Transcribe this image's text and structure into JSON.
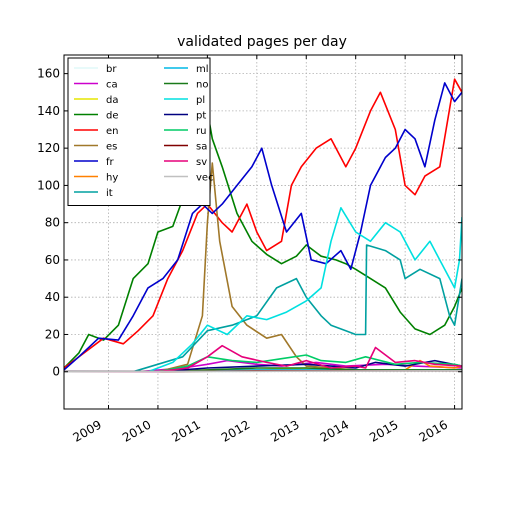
{
  "chart_data": {
    "type": "line",
    "title": "validated pages per day",
    "xlabel": "",
    "ylabel": "",
    "xlim": [
      2008.1,
      2016.15
    ],
    "ylim": [
      -20,
      170
    ],
    "x_ticks": [
      2009,
      2010,
      2011,
      2012,
      2013,
      2014,
      2015,
      2016
    ],
    "x_tick_labels": [
      "2009",
      "2010",
      "2011",
      "2012",
      "2013",
      "2014",
      "2015",
      "2016"
    ],
    "y_ticks": [
      0,
      20,
      40,
      60,
      80,
      100,
      120,
      140,
      160
    ],
    "y_tick_labels": [
      "0",
      "20",
      "40",
      "60",
      "80",
      "100",
      "120",
      "140",
      "160"
    ],
    "grid": true,
    "legend_position": "top-left",
    "legend_columns": 2,
    "series": [
      {
        "name": "br",
        "color": "#e0f8f8",
        "x": [
          2008.1,
          2016.15
        ],
        "y": [
          0,
          0.5
        ]
      },
      {
        "name": "ca",
        "color": "#cc00cc",
        "x": [
          2008.1,
          2009.6,
          2010.5,
          2011.0,
          2011.4,
          2012.0,
          2012.5,
          2013.2,
          2013.8,
          2014.6,
          2015.2,
          2016.15
        ],
        "y": [
          0,
          0,
          2,
          4,
          6,
          4,
          3,
          5,
          3,
          4,
          3,
          2
        ]
      },
      {
        "name": "da",
        "color": "#e6e600",
        "x": [
          2008.1,
          2010.0,
          2011.0,
          2012.0,
          2013.0,
          2014.0,
          2015.0,
          2016.15
        ],
        "y": [
          0,
          0,
          1,
          1,
          2,
          1,
          1,
          1
        ]
      },
      {
        "name": "de",
        "color": "#008000",
        "x": [
          2008.1,
          2008.4,
          2008.6,
          2008.9,
          2009.2,
          2009.5,
          2009.8,
          2010.0,
          2010.3,
          2010.6,
          2010.8,
          2011.0,
          2011.1,
          2011.3,
          2011.6,
          2011.9,
          2012.2,
          2012.5,
          2012.8,
          2013.0,
          2013.3,
          2013.6,
          2013.8,
          2014.0,
          2014.3,
          2014.6,
          2014.9,
          2015.2,
          2015.5,
          2015.8,
          2016.0,
          2016.15
        ],
        "y": [
          2,
          10,
          20,
          17,
          25,
          50,
          58,
          75,
          78,
          100,
          125,
          140,
          125,
          110,
          85,
          70,
          63,
          58,
          62,
          68,
          62,
          60,
          58,
          55,
          50,
          45,
          32,
          23,
          20,
          25,
          35,
          45
        ]
      },
      {
        "name": "en",
        "color": "#ff0000",
        "x": [
          2008.1,
          2008.5,
          2008.9,
          2009.3,
          2009.6,
          2009.9,
          2010.2,
          2010.5,
          2010.8,
          2011.0,
          2011.3,
          2011.5,
          2011.8,
          2012.0,
          2012.2,
          2012.5,
          2012.7,
          2012.9,
          2013.2,
          2013.5,
          2013.8,
          2014.0,
          2014.3,
          2014.5,
          2014.8,
          2015.0,
          2015.2,
          2015.4,
          2015.7,
          2016.0,
          2016.15
        ],
        "y": [
          2,
          10,
          18,
          15,
          22,
          30,
          50,
          65,
          85,
          90,
          80,
          75,
          90,
          75,
          65,
          70,
          100,
          110,
          120,
          125,
          110,
          120,
          140,
          150,
          130,
          100,
          95,
          105,
          110,
          157,
          150
        ]
      },
      {
        "name": "es",
        "color": "#a0782a",
        "x": [
          2008.1,
          2010.0,
          2010.6,
          2010.9,
          2011.0,
          2011.1,
          2011.25,
          2011.5,
          2011.8,
          2012.2,
          2012.5,
          2012.8,
          2013.0,
          2013.5,
          2014.0,
          2015.0,
          2016.15
        ],
        "y": [
          0,
          0,
          4,
          30,
          80,
          112,
          70,
          35,
          25,
          18,
          20,
          8,
          3,
          2,
          1,
          1,
          1
        ]
      },
      {
        "name": "fr",
        "color": "#0000cc",
        "x": [
          2008.1,
          2008.4,
          2008.8,
          2009.2,
          2009.5,
          2009.8,
          2010.1,
          2010.4,
          2010.7,
          2010.9,
          2011.1,
          2011.3,
          2011.6,
          2011.9,
          2012.1,
          2012.3,
          2012.6,
          2012.9,
          2013.1,
          2013.4,
          2013.7,
          2013.9,
          2014.1,
          2014.3,
          2014.6,
          2014.8,
          2015.0,
          2015.2,
          2015.4,
          2015.6,
          2015.8,
          2016.0,
          2016.15
        ],
        "y": [
          1,
          8,
          18,
          17,
          30,
          45,
          50,
          60,
          85,
          90,
          85,
          90,
          100,
          110,
          120,
          100,
          75,
          85,
          60,
          58,
          65,
          55,
          75,
          100,
          115,
          120,
          130,
          125,
          110,
          135,
          155,
          145,
          150
        ]
      },
      {
        "name": "hy",
        "color": "#ff8000",
        "x": [
          2008.1,
          2010.0,
          2012.0,
          2014.0,
          2015.0,
          2015.3,
          2015.5,
          2016.0,
          2016.15
        ],
        "y": [
          0,
          0,
          1,
          1,
          1,
          6,
          3,
          2,
          3
        ]
      },
      {
        "name": "it",
        "color": "#00a0a0",
        "x": [
          2008.1,
          2009.5,
          2010.5,
          2011.0,
          2011.5,
          2012.0,
          2012.4,
          2012.8,
          2013.0,
          2013.3,
          2013.5,
          2013.8,
          2014.0,
          2014.2,
          2014.22,
          2014.6,
          2014.9,
          2015.0,
          2015.3,
          2015.7,
          2015.9,
          2016.0,
          2016.15
        ],
        "y": [
          0,
          0,
          8,
          22,
          25,
          30,
          45,
          50,
          40,
          30,
          25,
          22,
          20,
          20,
          68,
          65,
          60,
          50,
          55,
          50,
          30,
          25,
          50
        ]
      },
      {
        "name": "ml",
        "color": "#00b8e6",
        "x": [
          2008.1,
          2010.0,
          2012.0,
          2014.0,
          2015.0,
          2016.15
        ],
        "y": [
          0,
          0,
          1,
          1,
          1,
          1
        ]
      },
      {
        "name": "no",
        "color": "#1a7a1a",
        "x": [
          2008.1,
          2010.0,
          2011.0,
          2012.0,
          2013.0,
          2014.0,
          2015.0,
          2016.15
        ],
        "y": [
          0,
          0,
          1,
          2,
          2,
          1,
          1,
          1
        ]
      },
      {
        "name": "pl",
        "color": "#00e0e0",
        "x": [
          2008.1,
          2009.8,
          2010.3,
          2010.7,
          2011.0,
          2011.4,
          2011.8,
          2012.2,
          2012.6,
          2013.0,
          2013.3,
          2013.5,
          2013.7,
          2014.0,
          2014.3,
          2014.6,
          2014.9,
          2015.2,
          2015.5,
          2015.8,
          2016.0,
          2016.1,
          2016.15
        ],
        "y": [
          0,
          0,
          5,
          15,
          25,
          20,
          30,
          28,
          32,
          38,
          45,
          70,
          88,
          75,
          70,
          80,
          75,
          60,
          70,
          55,
          45,
          60,
          83
        ]
      },
      {
        "name": "pt",
        "color": "#000080",
        "x": [
          2008.1,
          2010.0,
          2011.0,
          2012.0,
          2013.0,
          2013.5,
          2014.0,
          2014.4,
          2015.0,
          2015.6,
          2016.15
        ],
        "y": [
          0,
          0,
          2,
          3,
          4,
          3,
          2,
          5,
          3,
          6,
          3
        ]
      },
      {
        "name": "ru",
        "color": "#00cc66",
        "x": [
          2008.1,
          2010.0,
          2010.6,
          2011.0,
          2011.5,
          2012.0,
          2012.5,
          2013.0,
          2013.3,
          2013.8,
          2014.2,
          2014.8,
          2015.3,
          2016.0,
          2016.15
        ],
        "y": [
          0,
          0,
          3,
          8,
          6,
          5,
          7,
          9,
          6,
          5,
          8,
          4,
          5,
          4,
          3
        ]
      },
      {
        "name": "sa",
        "color": "#800000",
        "x": [
          2008.1,
          2010.0,
          2012.0,
          2014.0,
          2016.15
        ],
        "y": [
          0,
          0,
          0.5,
          0.5,
          0.5
        ]
      },
      {
        "name": "sv",
        "color": "#e6007a",
        "x": [
          2008.1,
          2010.0,
          2010.6,
          2011.0,
          2011.3,
          2011.7,
          2012.2,
          2012.6,
          2013.0,
          2013.5,
          2014.0,
          2014.2,
          2014.4,
          2014.8,
          2015.2,
          2015.6,
          2016.15
        ],
        "y": [
          0,
          0,
          2,
          8,
          14,
          8,
          5,
          3,
          6,
          2,
          3,
          2,
          13,
          5,
          6,
          4,
          3
        ]
      },
      {
        "name": "vec",
        "color": "#c0c0c0",
        "x": [
          2008.1,
          2016.15
        ],
        "y": [
          0,
          0.5
        ]
      }
    ]
  }
}
